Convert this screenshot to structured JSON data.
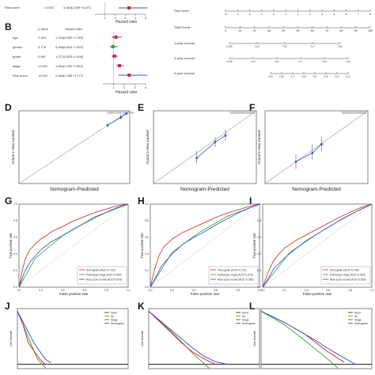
{
  "panel_labels": [
    "B",
    "D",
    "E",
    "F",
    "G",
    "H",
    "I",
    "J",
    "K",
    "L"
  ],
  "forest_top": {
    "row": {
      "variable": "Risk score",
      "p_value": "<0.001",
      "hazard_ratio": "3.363(2.349~5.197)"
    },
    "xlabel": "Hazard ratio",
    "ticks": [
      "1",
      "2",
      "3",
      "4",
      "5"
    ]
  },
  "forest_b": {
    "headers": {
      "p_value": "p value",
      "hazard_ratio": "Hazard ratio"
    },
    "rows": [
      {
        "variable": "age",
        "p_value": "0.310",
        "hazard_ratio": "1.218(0.832~1.783)",
        "hr": 1.218,
        "lo": 0.832,
        "hi": 1.783,
        "color": "#d62728"
      },
      {
        "variable": "gender",
        "p_value": "0.778",
        "hazard_ratio": "0.946(0.643~1.392)",
        "hr": 0.946,
        "lo": 0.643,
        "hi": 1.392,
        "color": "#2ca02c"
      },
      {
        "variable": "grade",
        "p_value": "0.587",
        "hazard_ratio": "1.077(0.825~1.406)",
        "hr": 1.077,
        "lo": 0.825,
        "hi": 1.406,
        "color": "#d62728"
      },
      {
        "variable": "stage",
        "p_value": "<0.001",
        "hazard_ratio": "1.556(1.239~1.954)",
        "hr": 1.556,
        "lo": 1.239,
        "hi": 1.954,
        "color": "#d62728"
      },
      {
        "variable": "Risk score",
        "p_value": "<0.001",
        "hazard_ratio": "2.466(1.458~4.177)",
        "hr": 2.466,
        "lo": 1.458,
        "hi": 4.177,
        "color": "#d62728"
      }
    ],
    "xlabel": "Hazard ratio",
    "ticks": [
      "1",
      "2",
      "3",
      "4"
    ]
  },
  "nomogram": {
    "rows": [
      {
        "label": "Risk score",
        "ticks": [
          "-4",
          "-3",
          "-2",
          "-1",
          "0",
          "1",
          "2",
          "3",
          "4",
          "5",
          "6",
          "7",
          "8"
        ]
      },
      {
        "label": "Total Points",
        "ticks": [
          "0",
          "10",
          "20",
          "30",
          "40",
          "50",
          "60",
          "70",
          "80",
          "90",
          "100"
        ]
      },
      {
        "label": "1-year survival",
        "ticks": [
          "0.99",
          "0.9",
          "0.8",
          "0.7",
          "0.6"
        ]
      },
      {
        "label": "3-year survival",
        "ticks": [
          "0.99",
          "0.9",
          "0.8",
          "0.7",
          "0.6",
          "0.5"
        ]
      },
      {
        "label": "5-year survival",
        "ticks": [
          "0.9",
          "0.8",
          "0.7",
          "0.6",
          "0.5",
          "0.4",
          "0.3",
          "0.2"
        ]
      }
    ]
  },
  "chart_data": [
    {
      "panel": "D",
      "type": "line",
      "xlabel": "Nomogram-Predicted",
      "ylabel": "Actual 1-Year survival",
      "series": [
        {
          "x": [
            0.8,
            0.92,
            0.97
          ],
          "y": [
            0.8,
            0.91,
            0.96
          ],
          "lo": [
            0.77,
            0.88,
            0.95
          ],
          "hi": [
            0.83,
            0.95,
            0.98
          ]
        }
      ]
    },
    {
      "panel": "E",
      "type": "line",
      "xlabel": "Nomogram-Predicted",
      "ylabel": "Actual 3-Year survival",
      "series": [
        {
          "x": [
            0.42,
            0.6,
            0.7
          ],
          "y": [
            0.35,
            0.57,
            0.66
          ],
          "lo": [
            0.28,
            0.5,
            0.59
          ],
          "hi": [
            0.45,
            0.64,
            0.74
          ]
        }
      ]
    },
    {
      "panel": "F",
      "type": "line",
      "xlabel": "Nomogram-Predicted",
      "ylabel": "Actual 5-Year survival",
      "series": [
        {
          "x": [
            0.3,
            0.46,
            0.55
          ],
          "y": [
            0.3,
            0.42,
            0.54
          ],
          "lo": [
            0.2,
            0.33,
            0.44
          ],
          "hi": [
            0.4,
            0.54,
            0.64
          ]
        }
      ]
    },
    {
      "panel": "G",
      "type": "line",
      "xlabel": "False positive rate",
      "ylabel": "True positive rate",
      "ticks": [
        "0.0",
        "0.2",
        "0.4",
        "0.6",
        "0.8",
        "1.0"
      ],
      "series": [
        {
          "name": "Nomogram (AUC=0.723)",
          "color": "#e31a1c",
          "x": [
            0,
            0.03,
            0.06,
            0.1,
            0.15,
            0.2,
            0.25,
            0.3,
            0.4,
            0.5,
            0.6,
            0.7,
            0.8,
            0.9,
            1
          ],
          "y": [
            0,
            0.2,
            0.35,
            0.45,
            0.52,
            0.58,
            0.62,
            0.67,
            0.73,
            0.8,
            0.85,
            0.9,
            0.94,
            0.98,
            1
          ]
        },
        {
          "name": "Pathologic stage (AUC=0.664)",
          "color": "#33a02c",
          "x": [
            0,
            0.15,
            0.4,
            0.7,
            1
          ],
          "y": [
            0,
            0.35,
            0.62,
            0.85,
            1
          ]
        },
        {
          "name": "Risk score model (AUC=0.676)",
          "color": "#1f4fd8",
          "x": [
            0,
            0.05,
            0.1,
            0.2,
            0.3,
            0.4,
            0.5,
            0.6,
            0.7,
            0.8,
            0.9,
            1
          ],
          "y": [
            0,
            0.18,
            0.3,
            0.45,
            0.55,
            0.62,
            0.7,
            0.77,
            0.84,
            0.9,
            0.96,
            1
          ]
        }
      ]
    },
    {
      "panel": "H",
      "type": "line",
      "xlabel": "False positive rate",
      "ylabel": "True positive rate",
      "ticks": [
        "0.0",
        "0.2",
        "0.4",
        "0.6",
        "0.8",
        "1.0"
      ],
      "series": [
        {
          "name": "Nomogram (AUC=0.721)",
          "color": "#e31a1c",
          "x": [
            0,
            0.04,
            0.08,
            0.12,
            0.2,
            0.3,
            0.4,
            0.5,
            0.6,
            0.7,
            0.8,
            0.9,
            1
          ],
          "y": [
            0,
            0.22,
            0.38,
            0.48,
            0.58,
            0.66,
            0.72,
            0.78,
            0.84,
            0.89,
            0.93,
            0.97,
            1
          ]
        },
        {
          "name": "Pathologic stage (AUC=0.676)",
          "color": "#33a02c",
          "x": [
            0,
            0.2,
            0.45,
            0.7,
            1
          ],
          "y": [
            0,
            0.42,
            0.66,
            0.85,
            1
          ]
        },
        {
          "name": "Risk score model (AUC=0.656)",
          "color": "#1f4fd8",
          "x": [
            0,
            0.05,
            0.1,
            0.2,
            0.3,
            0.4,
            0.5,
            0.6,
            0.7,
            0.8,
            0.9,
            1
          ],
          "y": [
            0,
            0.12,
            0.25,
            0.4,
            0.52,
            0.6,
            0.67,
            0.75,
            0.82,
            0.89,
            0.95,
            1
          ]
        }
      ]
    },
    {
      "panel": "I",
      "type": "line",
      "xlabel": "False positive rate",
      "ylabel": "True positive rate",
      "ticks": [
        "0.0",
        "0.2",
        "0.4",
        "0.6",
        "0.8",
        "1.0"
      ],
      "series": [
        {
          "name": "Nomogram (AUC=0.708)",
          "color": "#e31a1c",
          "x": [
            0,
            0.05,
            0.1,
            0.15,
            0.2,
            0.3,
            0.4,
            0.5,
            0.6,
            0.7,
            0.8,
            0.9,
            1
          ],
          "y": [
            0,
            0.18,
            0.32,
            0.4,
            0.47,
            0.56,
            0.63,
            0.7,
            0.77,
            0.84,
            0.9,
            0.96,
            1
          ]
        },
        {
          "name": "Pathologic stage (AUC=0.659)",
          "color": "#33a02c",
          "x": [
            0,
            0.25,
            0.5,
            0.75,
            1
          ],
          "y": [
            0,
            0.42,
            0.64,
            0.84,
            1
          ]
        },
        {
          "name": "Risk score model (AUC=0.659)",
          "color": "#1f4fd8",
          "x": [
            0,
            0.05,
            0.1,
            0.2,
            0.3,
            0.4,
            0.5,
            0.6,
            0.7,
            0.8,
            0.9,
            1
          ],
          "y": [
            0,
            0.1,
            0.22,
            0.35,
            0.46,
            0.56,
            0.64,
            0.72,
            0.8,
            0.87,
            0.94,
            1
          ]
        }
      ]
    },
    {
      "panel": "J",
      "type": "line",
      "xlabel": "",
      "ylabel": "Net benefit",
      "legend": [
        "None",
        "All",
        "Stage",
        "Nomogram"
      ],
      "series": [
        {
          "name": "None",
          "color": "#222222",
          "x": [
            0,
            1
          ],
          "y": [
            0,
            0
          ]
        },
        {
          "name": "All",
          "color": "#33a02c",
          "x": [
            0,
            0.08,
            0.18,
            0.26
          ],
          "y": [
            0.2,
            0.12,
            0.02,
            -0.08
          ]
        },
        {
          "name": "Stage",
          "color": "#e31a1c",
          "x": [
            0,
            0.05,
            0.1,
            0.15,
            0.2,
            0.25
          ],
          "y": [
            0.2,
            0.15,
            0.08,
            0.05,
            0.02,
            0
          ]
        },
        {
          "name": "Nomogram",
          "color": "#1f4fd8",
          "x": [
            0,
            0.05,
            0.1,
            0.15,
            0.2,
            0.25,
            0.3
          ],
          "y": [
            0.2,
            0.16,
            0.12,
            0.08,
            0.05,
            0.02,
            0.005
          ]
        }
      ]
    },
    {
      "panel": "K",
      "type": "line",
      "xlabel": "",
      "ylabel": "Net benefit",
      "legend": [
        "None",
        "All",
        "Stage",
        "Nomogram"
      ],
      "series": [
        {
          "name": "None",
          "color": "#222222",
          "x": [
            0,
            1
          ],
          "y": [
            0,
            0
          ]
        },
        {
          "name": "All",
          "color": "#33a02c",
          "x": [
            0,
            0.2,
            0.4,
            0.55
          ],
          "y": [
            0.4,
            0.25,
            0.08,
            -0.05
          ]
        },
        {
          "name": "Stage",
          "color": "#e31a1c",
          "x": [
            0,
            0.1,
            0.2,
            0.3,
            0.4,
            0.5,
            0.6
          ],
          "y": [
            0.4,
            0.32,
            0.24,
            0.16,
            0.09,
            0.04,
            0
          ]
        },
        {
          "name": "Nomogram",
          "color": "#1f4fd8",
          "x": [
            0,
            0.1,
            0.2,
            0.3,
            0.4,
            0.5,
            0.6,
            0.7
          ],
          "y": [
            0.4,
            0.33,
            0.26,
            0.19,
            0.12,
            0.06,
            0.02,
            0
          ]
        }
      ]
    },
    {
      "panel": "L",
      "type": "line",
      "xlabel": "",
      "ylabel": "Net benefit",
      "legend": [
        "None",
        "All",
        "Stage",
        "Nomogram"
      ],
      "series": [
        {
          "name": "None",
          "color": "#222222",
          "x": [
            0,
            1
          ],
          "y": [
            0,
            0
          ]
        },
        {
          "name": "All",
          "color": "#33a02c",
          "x": [
            0,
            0.2,
            0.4,
            0.6,
            0.7
          ],
          "y": [
            0.5,
            0.38,
            0.22,
            0.05,
            -0.05
          ]
        },
        {
          "name": "Stage",
          "color": "#e31a1c",
          "x": [
            0,
            0.2,
            0.4,
            0.6,
            0.75
          ],
          "y": [
            0.5,
            0.4,
            0.28,
            0.12,
            0.02
          ]
        },
        {
          "name": "Nomogram",
          "color": "#1f4fd8",
          "x": [
            0,
            0.1,
            0.2,
            0.3,
            0.4,
            0.5,
            0.6,
            0.7,
            0.8,
            0.85
          ],
          "y": [
            0.5,
            0.45,
            0.4,
            0.34,
            0.28,
            0.22,
            0.15,
            0.09,
            0.03,
            0
          ]
        }
      ]
    }
  ]
}
